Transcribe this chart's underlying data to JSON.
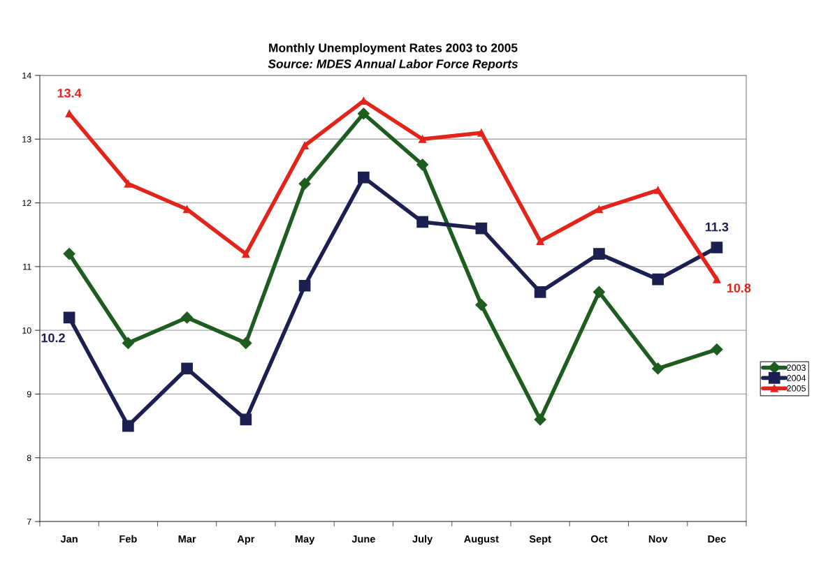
{
  "chart_data": {
    "type": "line",
    "title": "Monthly Unemployment Rates 2003 to 2005",
    "subtitle": "Source: MDES Annual Labor Force Reports",
    "categories": [
      "Jan",
      "Feb",
      "Mar",
      "Apr",
      "May",
      "June",
      "July",
      "August",
      "Sept",
      "Oct",
      "Nov",
      "Dec"
    ],
    "series": [
      {
        "name": "2003",
        "color": "#1f5c1f",
        "marker": "diamond",
        "values": [
          11.2,
          9.8,
          10.2,
          9.8,
          12.3,
          13.4,
          12.6,
          10.4,
          8.6,
          10.6,
          9.4,
          9.7
        ]
      },
      {
        "name": "2004",
        "color": "#1c2050",
        "marker": "square",
        "values": [
          10.2,
          8.5,
          9.4,
          8.6,
          10.7,
          12.4,
          11.7,
          11.6,
          10.6,
          11.2,
          10.8,
          11.3
        ],
        "value_labels": [
          "10.2",
          null,
          null,
          null,
          null,
          null,
          null,
          null,
          null,
          null,
          null,
          "11.3"
        ]
      },
      {
        "name": "2005",
        "color": "#e3241b",
        "marker": "triangle",
        "values": [
          13.4,
          12.3,
          11.9,
          11.2,
          12.9,
          13.6,
          13.0,
          13.1,
          11.4,
          11.9,
          12.2,
          10.8
        ],
        "value_labels": [
          "13.4",
          null,
          null,
          null,
          null,
          null,
          null,
          null,
          null,
          null,
          null,
          "10.8"
        ]
      }
    ],
    "ylim": [
      7,
      14
    ],
    "yticks": [
      7,
      8,
      9,
      10,
      11,
      12,
      13,
      14
    ],
    "grid": "y",
    "legend": "right",
    "line_style": "solid"
  }
}
